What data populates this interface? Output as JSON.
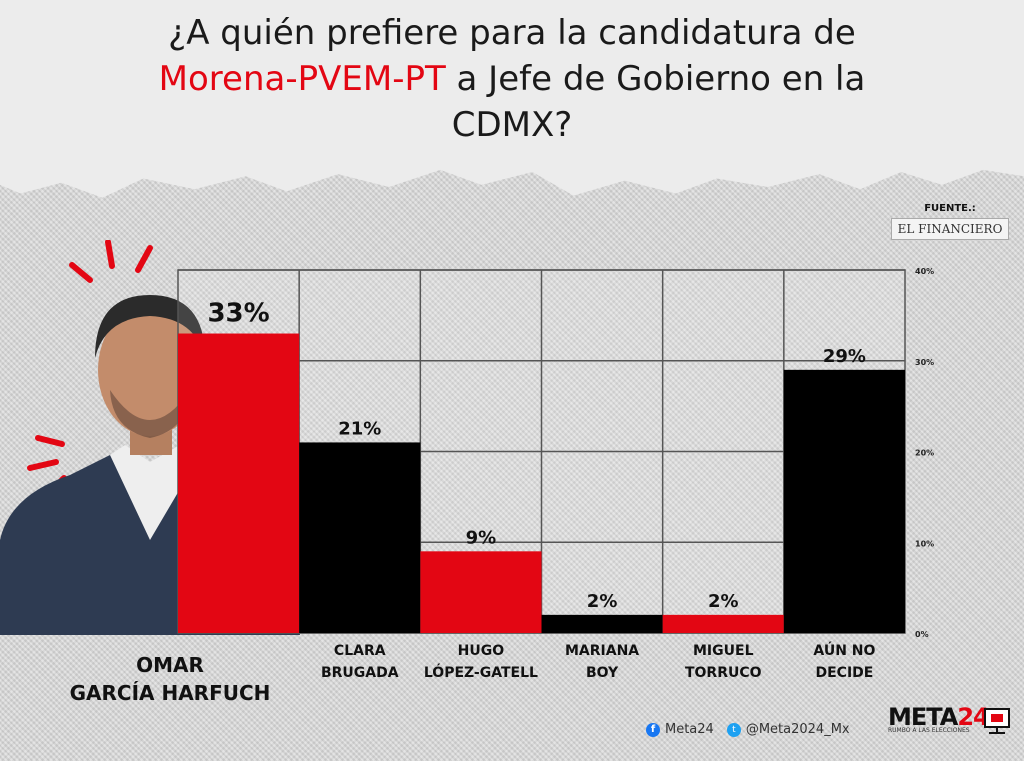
{
  "title": {
    "line1": "¿A quién prefiere para la candidatura de",
    "highlight": "Morena-PVEM-PT",
    "line2_rest": " a Jefe de Gobierno en la",
    "line3": "CDMX?"
  },
  "source": {
    "label": "FUENTE.:",
    "logo_text": "EL FINANCIERO"
  },
  "featured_candidate": {
    "name_line1": "OMAR",
    "name_line2": "GARCÍA HARFUCH"
  },
  "footer": {
    "facebook": "Meta24",
    "twitter": "@Meta2024_Mx"
  },
  "brand": {
    "name_main": "META",
    "name_num": "24",
    "tagline": "RUMBO A LAS ELECCIONES"
  },
  "colors": {
    "red": "#e30613",
    "black": "#000000"
  },
  "chart_data": {
    "type": "bar",
    "categories": [
      "OMAR GARCÍA HARFUCH",
      "CLARA BRUGADA",
      "HUGO LÓPEZ-GATELL",
      "MARIANA BOY",
      "MIGUEL TORRUCO",
      "AÚN NO DECIDE"
    ],
    "category_lines": [
      [],
      [
        "CLARA",
        "BRUGADA"
      ],
      [
        "HUGO",
        "LÓPEZ-GATELL"
      ],
      [
        "MARIANA",
        "BOY"
      ],
      [
        "MIGUEL",
        "TORRUCO"
      ],
      [
        "AÚN NO",
        "DECIDE"
      ]
    ],
    "values": [
      33,
      21,
      9,
      2,
      2,
      29
    ],
    "data_labels": [
      "33%",
      "21%",
      "9%",
      "2%",
      "2%",
      "29%"
    ],
    "bar_colors": [
      "#e30613",
      "#000000",
      "#e30613",
      "#000000",
      "#e30613",
      "#000000"
    ],
    "ylim": [
      0,
      40
    ],
    "yticks": [
      0,
      10,
      20,
      30,
      40
    ],
    "ytick_labels": [
      "0%",
      "10%",
      "20%",
      "30%",
      "40%"
    ],
    "y_axis_side": "right",
    "grid": true
  }
}
